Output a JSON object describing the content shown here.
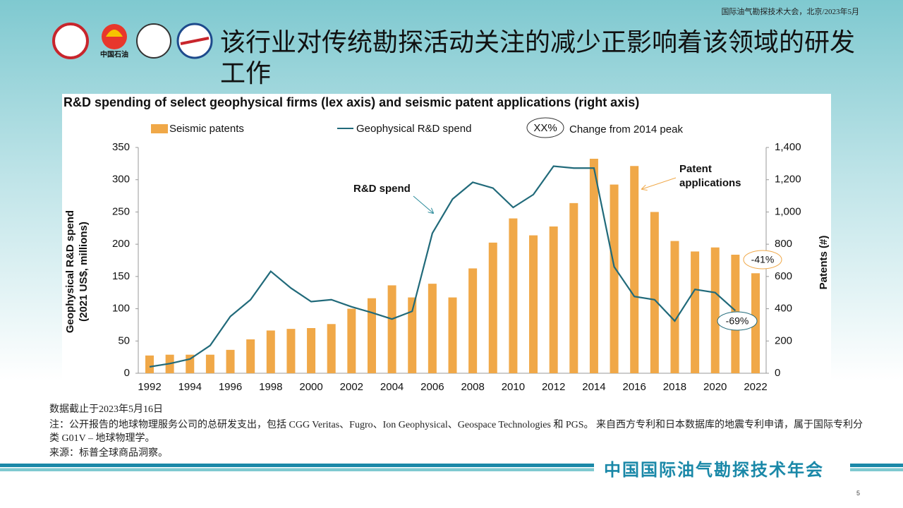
{
  "header": {
    "event": "国际油气勘探技术大会，北京/2023年5月",
    "logo_text": "中国石油",
    "title": "该行业对传统勘探活动关注的减少正影响着该领域的研发工作"
  },
  "chart_data": {
    "type": "bar",
    "title": "R&D spending of select geophysical firms (lex axis) and seismic patent applications (right axis)",
    "categories": [
      "1992",
      null,
      "1994",
      null,
      "1996",
      null,
      "1998",
      null,
      "2000",
      null,
      "2002",
      null,
      "2004",
      null,
      "2006",
      null,
      "2008",
      null,
      "2010",
      null,
      "2012",
      null,
      "2014",
      null,
      "2016",
      null,
      "2018",
      null,
      "2020",
      null,
      "2022"
    ],
    "series": [
      {
        "name": "Seismic patents",
        "color": "#f0a848",
        "axis": "y2",
        "values": [
          110,
          115,
          115,
          115,
          145,
          210,
          265,
          275,
          280,
          305,
          400,
          465,
          545,
          470,
          555,
          470,
          650,
          810,
          960,
          855,
          910,
          1055,
          1330,
          1170,
          1285,
          1000,
          820,
          755,
          780,
          735,
          620
        ]
      },
      {
        "name": "Geophysical R&D spend",
        "color": "#216a7a",
        "type": "line",
        "values": [
          10,
          15,
          22,
          43,
          88,
          114,
          158,
          132,
          111,
          114,
          103,
          94,
          84,
          96,
          217,
          270,
          296,
          287,
          257,
          277,
          321,
          318,
          318,
          165,
          119,
          114,
          81,
          130,
          125,
          97,
          null
        ]
      }
    ],
    "legend_note": {
      "symbol": "XX%",
      "text": "Change from 2014 peak"
    },
    "y_label": [
      "Geophysical R&D spend",
      "(2021 US$, millions)"
    ],
    "y2_label": "Patents (#)",
    "ylim": [
      0,
      350
    ],
    "yticks": [
      0,
      50,
      100,
      150,
      200,
      250,
      300,
      350
    ],
    "y2lim": [
      0,
      1400
    ],
    "y2ticks": [
      0,
      200,
      400,
      600,
      800,
      {
        "value": 1000,
        "label": "1,000"
      },
      {
        "value": 1200,
        "label": "1,200"
      },
      {
        "value": 1400,
        "label": "1,400"
      }
    ],
    "grid": false,
    "annotations": [
      "R&D spend",
      "Patent applications",
      "-41%",
      "-69%"
    ]
  },
  "notes": [
    "数据截止于2023年5月16日",
    "注：公开报告的地球物理服务公司的总研发支出，包括 CGG Veritas、Fugro、Ion Geophysical、Geospace Technologies 和 PGS。 来自西方专利和日本数据库的地震专利申请，属于国际专利分类 G01V – 地球物理学。",
    "来源：标普全球商品洞察。"
  ],
  "footer": {
    "conference": "中国国际油气勘探技术年会",
    "page": "5"
  }
}
